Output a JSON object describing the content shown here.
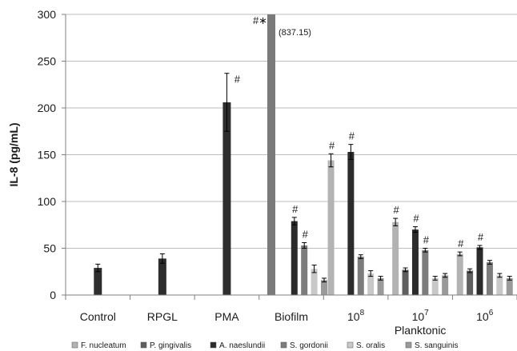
{
  "chart_data": {
    "type": "bar",
    "ylabel": "IL-8 (pg/mL)",
    "ylim": [
      0,
      300
    ],
    "yticks": [
      "0",
      "50",
      "100",
      "150",
      "200",
      "250",
      "300"
    ],
    "group_label": "Planktonic",
    "categories": [
      {
        "text": "Control",
        "sup": ""
      },
      {
        "text": "RPGL",
        "sup": ""
      },
      {
        "text": "PMA",
        "sup": ""
      },
      {
        "text": "Biofilm",
        "sup": ""
      },
      {
        "text": "10",
        "sup": "8"
      },
      {
        "text": "10",
        "sup": "7"
      },
      {
        "text": "10",
        "sup": "6"
      }
    ],
    "series": [
      {
        "name": "F. nucleatum",
        "color": "#b3b3b3"
      },
      {
        "name": "P. gingivalis",
        "color": "#5f5f5f"
      },
      {
        "name": "A. naeslundii",
        "color": "#2b2b2b"
      },
      {
        "name": "S. gordonii",
        "color": "#7c7c7c"
      },
      {
        "name": "S. oralis",
        "color": "#c8c8c8"
      },
      {
        "name": "S. sanguinis",
        "color": "#9a9a9a"
      }
    ],
    "single_bars": [
      {
        "category": 0,
        "value": 29,
        "err": 4,
        "color": "#2e2e2e",
        "mark": ""
      },
      {
        "category": 1,
        "value": 39,
        "err": 5,
        "color": "#2e2e2e",
        "mark": ""
      },
      {
        "category": 2,
        "value": 206,
        "err": 31,
        "color": "#2e2e2e",
        "mark": "#"
      },
      {
        "category": 3,
        "value": 837.15,
        "err": 0,
        "color": "#7a7a7a",
        "mark": "#∗",
        "note": "(837.15)"
      }
    ],
    "grouped": [
      {
        "category": 3,
        "values": [
          null,
          null,
          79,
          53,
          28,
          16
        ],
        "errs": [
          0,
          0,
          4,
          3,
          4,
          2
        ],
        "marks": [
          "",
          "",
          "#",
          "#",
          "",
          ""
        ]
      },
      {
        "category": 4,
        "values": [
          144,
          null,
          153,
          41,
          23,
          18
        ],
        "errs": [
          7,
          0,
          8,
          2,
          3,
          2
        ],
        "marks": [
          "#",
          "",
          "#",
          "",
          "",
          ""
        ]
      },
      {
        "category": 5,
        "values": [
          78,
          27,
          70,
          48,
          18,
          21
        ],
        "errs": [
          4,
          2,
          3,
          2,
          2,
          2
        ],
        "marks": [
          "#",
          "",
          "#",
          "#",
          "",
          ""
        ]
      },
      {
        "category": 6,
        "values": [
          44,
          26,
          51,
          35,
          21,
          18
        ],
        "errs": [
          2,
          2,
          2,
          2,
          2,
          2
        ],
        "marks": [
          "#",
          "",
          "#",
          "",
          "",
          ""
        ]
      }
    ]
  }
}
